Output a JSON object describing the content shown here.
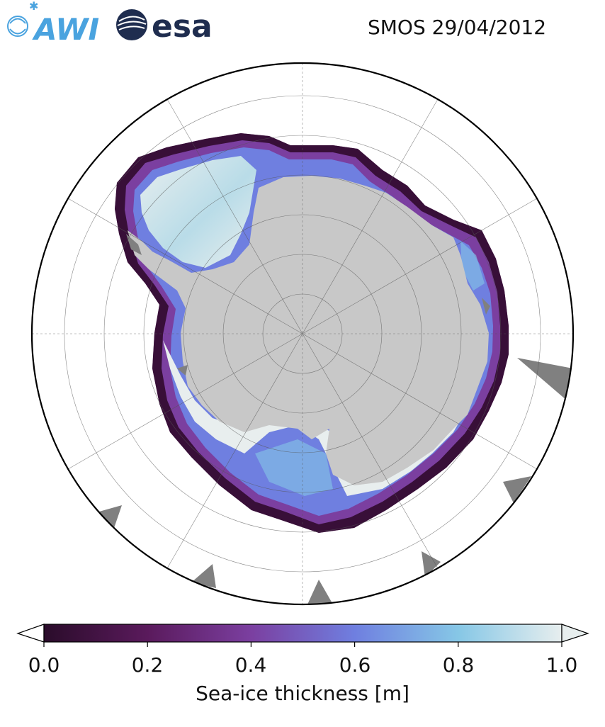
{
  "header": {
    "logos": [
      {
        "name": "awi-logo",
        "text": "AWI",
        "color": "#4aa3df"
      },
      {
        "name": "esa-logo",
        "text": "esa",
        "color": "#1f2d4f"
      }
    ],
    "title": "SMOS 29/04/2012"
  },
  "map": {
    "projection": "south-polar-stereographic",
    "land_color": "#c8c8c8",
    "missing_color": "#808080",
    "graticule": true
  },
  "colorbar": {
    "label": "Sea-ice thickness [m]",
    "ticks": [
      "0.0",
      "0.2",
      "0.4",
      "0.6",
      "0.8",
      "1.0"
    ],
    "min": 0.0,
    "max": 1.0,
    "extend": "both",
    "colors": [
      "#2a0c2a",
      "#5a1a5c",
      "#7b3fa0",
      "#6f7fe0",
      "#86c7e6",
      "#e7eeee"
    ]
  }
}
